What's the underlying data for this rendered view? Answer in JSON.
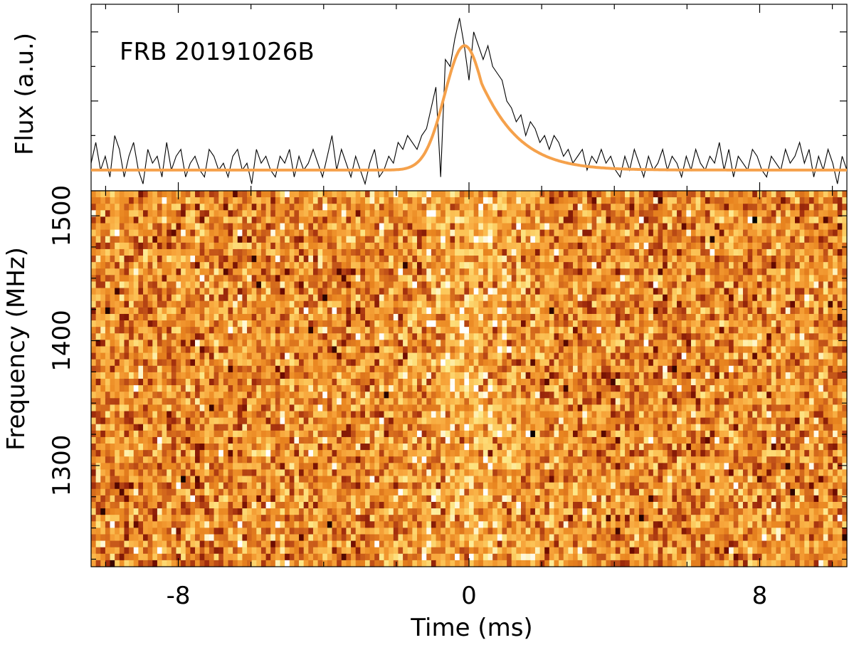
{
  "chart_data": [
    {
      "type": "line",
      "panel": "top",
      "annotation": "FRB 20191026B",
      "ylabel": "Flux (a.u.)",
      "xlim": [
        -10.4,
        10.4
      ],
      "ylim": [
        -0.3,
        2.4
      ],
      "y_ticks_labeled": false,
      "series": [
        {
          "role": "observed-profile",
          "color": "#000000",
          "x": [
            -10.4,
            -10.27,
            -10.14,
            -10.01,
            -9.88,
            -9.75,
            -9.62,
            -9.49,
            -9.36,
            -9.23,
            -9.1,
            -8.97,
            -8.84,
            -8.71,
            -8.58,
            -8.45,
            -8.32,
            -8.19,
            -8.06,
            -7.93,
            -7.8,
            -7.67,
            -7.54,
            -7.41,
            -7.28,
            -7.15,
            -7.02,
            -6.89,
            -6.76,
            -6.63,
            -6.5,
            -6.37,
            -6.24,
            -6.11,
            -5.98,
            -5.85,
            -5.72,
            -5.59,
            -5.46,
            -5.33,
            -5.2,
            -5.07,
            -4.94,
            -4.81,
            -4.68,
            -4.55,
            -4.42,
            -4.29,
            -4.16,
            -4.03,
            -3.9,
            -3.77,
            -3.64,
            -3.51,
            -3.38,
            -3.25,
            -3.12,
            -2.99,
            -2.86,
            -2.73,
            -2.6,
            -2.47,
            -2.34,
            -2.21,
            -2.08,
            -1.95,
            -1.82,
            -1.69,
            -1.56,
            -1.43,
            -1.3,
            -1.17,
            -1.04,
            -0.91,
            -0.78,
            -0.65,
            -0.52,
            -0.39,
            -0.26,
            -0.13,
            0.0,
            0.13,
            0.26,
            0.39,
            0.52,
            0.65,
            0.78,
            0.91,
            1.04,
            1.17,
            1.3,
            1.43,
            1.56,
            1.69,
            1.82,
            1.95,
            2.08,
            2.21,
            2.34,
            2.47,
            2.6,
            2.73,
            2.86,
            2.99,
            3.12,
            3.25,
            3.38,
            3.51,
            3.64,
            3.77,
            3.9,
            4.03,
            4.16,
            4.29,
            4.42,
            4.55,
            4.68,
            4.81,
            4.94,
            5.07,
            5.2,
            5.33,
            5.46,
            5.59,
            5.72,
            5.85,
            5.98,
            6.11,
            6.24,
            6.37,
            6.5,
            6.63,
            6.76,
            6.89,
            7.02,
            7.15,
            7.28,
            7.41,
            7.54,
            7.67,
            7.8,
            7.93,
            8.06,
            8.19,
            8.32,
            8.45,
            8.58,
            8.71,
            8.84,
            8.97,
            9.1,
            9.23,
            9.36,
            9.49,
            9.62,
            9.75,
            9.88,
            10.01,
            10.14,
            10.27,
            10.4
          ],
          "y": [
            0.1,
            0.4,
            0.0,
            0.2,
            -0.1,
            0.5,
            0.3,
            -0.1,
            0.2,
            0.4,
            0.0,
            -0.2,
            0.3,
            0.1,
            0.2,
            -0.1,
            0.4,
            0.0,
            0.2,
            0.3,
            -0.1,
            0.1,
            0.2,
            0.0,
            -0.1,
            0.3,
            0.2,
            0.0,
            0.1,
            -0.1,
            0.2,
            0.3,
            0.0,
            0.1,
            -0.2,
            0.3,
            0.1,
            0.2,
            0.0,
            -0.1,
            0.2,
            0.1,
            0.3,
            -0.1,
            0.2,
            0.0,
            0.1,
            0.3,
            0.1,
            -0.1,
            0.2,
            0.5,
            0.0,
            0.3,
            0.1,
            -0.1,
            0.2,
            0.0,
            -0.2,
            0.1,
            0.3,
            -0.1,
            0.0,
            0.2,
            0.1,
            0.4,
            0.3,
            0.5,
            0.4,
            0.3,
            0.5,
            0.6,
            0.9,
            1.2,
            -0.1,
            1.6,
            1.5,
            1.9,
            2.2,
            1.8,
            1.3,
            2.0,
            1.8,
            1.6,
            1.8,
            1.5,
            1.4,
            1.3,
            1.0,
            0.9,
            0.7,
            0.8,
            0.5,
            0.7,
            0.6,
            0.4,
            0.5,
            0.3,
            0.5,
            0.4,
            0.2,
            0.3,
            0.1,
            0.2,
            0.3,
            0.0,
            0.2,
            0.1,
            0.3,
            0.1,
            0.2,
            0.0,
            -0.1,
            0.2,
            0.0,
            0.3,
            0.1,
            -0.1,
            0.2,
            0.0,
            0.1,
            0.3,
            0.0,
            0.2,
            0.1,
            -0.1,
            0.2,
            0.0,
            0.3,
            0.1,
            0.0,
            0.2,
            0.1,
            0.4,
            0.0,
            0.3,
            -0.1,
            0.2,
            0.1,
            0.0,
            0.3,
            0.2,
            0.0,
            -0.1,
            0.2,
            0.1,
            0.0,
            0.3,
            0.1,
            0.2,
            0.4,
            0.1,
            0.3,
            -0.1,
            0.2,
            0.0,
            0.3,
            0.1,
            -0.2,
            0.2,
            0.0
          ]
        },
        {
          "role": "model-fit",
          "color": "#f5a14b",
          "model": "scattered-gaussian",
          "baseline": 0.0,
          "amplitude": 1.8,
          "center": -0.12,
          "sigma": 0.55,
          "decay": 1.15
        }
      ]
    },
    {
      "type": "heatmap",
      "panel": "bottom",
      "xlabel": "Time (ms)",
      "ylabel": "Frequency (MHz)",
      "xlim": [
        -10.4,
        10.4
      ],
      "ylim": [
        1219,
        1520
      ],
      "x_ticks": [
        -8,
        0,
        8
      ],
      "x_tick_labels": [
        "-8",
        "0",
        "8"
      ],
      "y_ticks": [
        1300,
        1400,
        1500
      ],
      "y_tick_labels": [
        "1300",
        "1400",
        "1500"
      ],
      "grid": {
        "time_bins": 160,
        "freq_channels": 58
      },
      "colormap": [
        "#000000",
        "#6b0a00",
        "#a12d0d",
        "#c85a1a",
        "#e8841f",
        "#f7a43a",
        "#fcc659",
        "#fde889",
        "#ffffff"
      ],
      "signal_center_ms": 0.0,
      "seed": 20191026
    }
  ]
}
